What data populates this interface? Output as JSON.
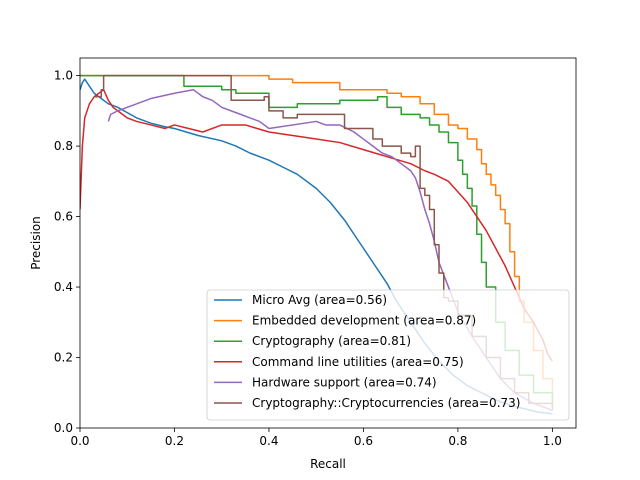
{
  "chart_data": {
    "type": "line",
    "title": "",
    "xlabel": "Recall",
    "ylabel": "Precision",
    "xlim": [
      0.0,
      1.05
    ],
    "ylim": [
      0.0,
      1.05
    ],
    "xticks": [
      0.0,
      0.2,
      0.4,
      0.6,
      0.8,
      1.0
    ],
    "yticks": [
      0.0,
      0.2,
      0.4,
      0.6,
      0.8,
      1.0
    ],
    "xtick_labels": [
      "0.0",
      "0.2",
      "0.4",
      "0.6",
      "0.8",
      "1.0"
    ],
    "ytick_labels": [
      "0.0",
      "0.2",
      "0.4",
      "0.6",
      "0.8",
      "1.0"
    ],
    "grid": false,
    "legend_position": "lower right",
    "series": [
      {
        "name": "Micro Avg (area=0.56)",
        "color": "#1f77b4",
        "step": false,
        "points": [
          [
            0.0,
            0.96
          ],
          [
            0.005,
            0.98
          ],
          [
            0.01,
            0.99
          ],
          [
            0.02,
            0.97
          ],
          [
            0.03,
            0.95
          ],
          [
            0.04,
            0.94
          ],
          [
            0.06,
            0.92
          ],
          [
            0.08,
            0.91
          ],
          [
            0.1,
            0.895
          ],
          [
            0.12,
            0.88
          ],
          [
            0.15,
            0.865
          ],
          [
            0.18,
            0.855
          ],
          [
            0.2,
            0.85
          ],
          [
            0.25,
            0.83
          ],
          [
            0.3,
            0.815
          ],
          [
            0.33,
            0.8
          ],
          [
            0.36,
            0.78
          ],
          [
            0.4,
            0.76
          ],
          [
            0.43,
            0.74
          ],
          [
            0.46,
            0.72
          ],
          [
            0.5,
            0.68
          ],
          [
            0.53,
            0.64
          ],
          [
            0.56,
            0.59
          ],
          [
            0.59,
            0.53
          ],
          [
            0.62,
            0.47
          ],
          [
            0.65,
            0.41
          ],
          [
            0.67,
            0.36
          ],
          [
            0.7,
            0.3
          ],
          [
            0.73,
            0.24
          ],
          [
            0.76,
            0.19
          ],
          [
            0.79,
            0.15
          ],
          [
            0.82,
            0.12
          ],
          [
            0.85,
            0.1
          ],
          [
            0.88,
            0.08
          ],
          [
            0.91,
            0.065
          ],
          [
            0.94,
            0.055
          ],
          [
            0.97,
            0.045
          ],
          [
            1.0,
            0.04
          ]
        ]
      },
      {
        "name": "Embedded development (area=0.87)",
        "color": "#ff7f0e",
        "step": true,
        "points": [
          [
            0.0,
            1.0
          ],
          [
            0.3,
            1.0
          ],
          [
            0.4,
            0.99
          ],
          [
            0.45,
            0.98
          ],
          [
            0.5,
            0.98
          ],
          [
            0.55,
            0.96
          ],
          [
            0.62,
            0.96
          ],
          [
            0.65,
            0.95
          ],
          [
            0.68,
            0.94
          ],
          [
            0.72,
            0.92
          ],
          [
            0.75,
            0.89
          ],
          [
            0.78,
            0.86
          ],
          [
            0.8,
            0.85
          ],
          [
            0.82,
            0.82
          ],
          [
            0.84,
            0.79
          ],
          [
            0.85,
            0.75
          ],
          [
            0.86,
            0.72
          ],
          [
            0.87,
            0.69
          ],
          [
            0.88,
            0.66
          ],
          [
            0.89,
            0.62
          ],
          [
            0.9,
            0.58
          ],
          [
            0.91,
            0.5
          ],
          [
            0.92,
            0.43
          ],
          [
            0.93,
            0.36
          ],
          [
            0.94,
            0.3
          ],
          [
            0.96,
            0.22
          ],
          [
            0.98,
            0.14
          ],
          [
            1.0,
            0.08
          ]
        ]
      },
      {
        "name": "Cryptography (area=0.81)",
        "color": "#2ca02c",
        "step": true,
        "points": [
          [
            0.0,
            1.0
          ],
          [
            0.21,
            1.0
          ],
          [
            0.22,
            0.97
          ],
          [
            0.3,
            0.96
          ],
          [
            0.33,
            0.95
          ],
          [
            0.4,
            0.91
          ],
          [
            0.46,
            0.92
          ],
          [
            0.55,
            0.93
          ],
          [
            0.63,
            0.94
          ],
          [
            0.65,
            0.91
          ],
          [
            0.68,
            0.89
          ],
          [
            0.72,
            0.88
          ],
          [
            0.74,
            0.86
          ],
          [
            0.76,
            0.84
          ],
          [
            0.78,
            0.81
          ],
          [
            0.8,
            0.76
          ],
          [
            0.81,
            0.72
          ],
          [
            0.82,
            0.68
          ],
          [
            0.83,
            0.63
          ],
          [
            0.84,
            0.55
          ],
          [
            0.85,
            0.47
          ],
          [
            0.86,
            0.4
          ],
          [
            0.88,
            0.3
          ],
          [
            0.9,
            0.22
          ],
          [
            0.93,
            0.15
          ],
          [
            0.96,
            0.1
          ],
          [
            1.0,
            0.06
          ]
        ]
      },
      {
        "name": "Command line utilities (area=0.75)",
        "color": "#d62728",
        "step": false,
        "points": [
          [
            0.0,
            0.62
          ],
          [
            0.005,
            0.8
          ],
          [
            0.01,
            0.88
          ],
          [
            0.02,
            0.92
          ],
          [
            0.03,
            0.94
          ],
          [
            0.05,
            0.96
          ],
          [
            0.06,
            0.93
          ],
          [
            0.07,
            0.91
          ],
          [
            0.08,
            0.9
          ],
          [
            0.09,
            0.89
          ],
          [
            0.1,
            0.88
          ],
          [
            0.12,
            0.87
          ],
          [
            0.15,
            0.86
          ],
          [
            0.18,
            0.85
          ],
          [
            0.2,
            0.86
          ],
          [
            0.23,
            0.85
          ],
          [
            0.26,
            0.84
          ],
          [
            0.3,
            0.86
          ],
          [
            0.35,
            0.86
          ],
          [
            0.4,
            0.84
          ],
          [
            0.45,
            0.83
          ],
          [
            0.5,
            0.82
          ],
          [
            0.55,
            0.81
          ],
          [
            0.6,
            0.79
          ],
          [
            0.65,
            0.77
          ],
          [
            0.7,
            0.75
          ],
          [
            0.73,
            0.73
          ],
          [
            0.75,
            0.72
          ],
          [
            0.78,
            0.7
          ],
          [
            0.8,
            0.67
          ],
          [
            0.82,
            0.64
          ],
          [
            0.84,
            0.6
          ],
          [
            0.86,
            0.56
          ],
          [
            0.88,
            0.51
          ],
          [
            0.9,
            0.46
          ],
          [
            0.92,
            0.4
          ],
          [
            0.94,
            0.34
          ],
          [
            0.96,
            0.3
          ],
          [
            0.98,
            0.25
          ],
          [
            0.99,
            0.21
          ],
          [
            1.0,
            0.19
          ]
        ]
      },
      {
        "name": "Hardware support (area=0.74)",
        "color": "#9467bd",
        "step": false,
        "points": [
          [
            0.06,
            0.87
          ],
          [
            0.065,
            0.89
          ],
          [
            0.08,
            0.9
          ],
          [
            0.1,
            0.91
          ],
          [
            0.12,
            0.92
          ],
          [
            0.15,
            0.935
          ],
          [
            0.2,
            0.95
          ],
          [
            0.24,
            0.96
          ],
          [
            0.26,
            0.94
          ],
          [
            0.28,
            0.93
          ],
          [
            0.3,
            0.91
          ],
          [
            0.32,
            0.9
          ],
          [
            0.34,
            0.89
          ],
          [
            0.36,
            0.88
          ],
          [
            0.38,
            0.87
          ],
          [
            0.4,
            0.85
          ],
          [
            0.5,
            0.87
          ],
          [
            0.52,
            0.86
          ],
          [
            0.55,
            0.86
          ],
          [
            0.58,
            0.84
          ],
          [
            0.6,
            0.82
          ],
          [
            0.62,
            0.8
          ],
          [
            0.64,
            0.78
          ],
          [
            0.66,
            0.77
          ],
          [
            0.68,
            0.75
          ],
          [
            0.7,
            0.73
          ],
          [
            0.71,
            0.71
          ],
          [
            0.72,
            0.67
          ],
          [
            0.73,
            0.62
          ],
          [
            0.74,
            0.58
          ],
          [
            0.75,
            0.53
          ],
          [
            0.76,
            0.47
          ],
          [
            0.78,
            0.4
          ],
          [
            0.8,
            0.33
          ],
          [
            0.83,
            0.26
          ],
          [
            0.86,
            0.2
          ],
          [
            0.89,
            0.14
          ],
          [
            0.92,
            0.1
          ],
          [
            0.96,
            0.07
          ],
          [
            1.0,
            0.05
          ]
        ]
      },
      {
        "name": "Cryptography::Cryptocurrencies (area=0.73)",
        "color": "#8c564b",
        "step": true,
        "points": [
          [
            0.03,
            0.94
          ],
          [
            0.045,
            0.96
          ],
          [
            0.05,
            1.0
          ],
          [
            0.31,
            1.0
          ],
          [
            0.32,
            0.93
          ],
          [
            0.39,
            0.94
          ],
          [
            0.4,
            0.9
          ],
          [
            0.43,
            0.88
          ],
          [
            0.46,
            0.89
          ],
          [
            0.56,
            0.85
          ],
          [
            0.62,
            0.82
          ],
          [
            0.64,
            0.8
          ],
          [
            0.68,
            0.78
          ],
          [
            0.7,
            0.77
          ],
          [
            0.71,
            0.8
          ],
          [
            0.72,
            0.68
          ],
          [
            0.73,
            0.66
          ],
          [
            0.74,
            0.62
          ],
          [
            0.75,
            0.52
          ],
          [
            0.76,
            0.44
          ],
          [
            0.77,
            0.37
          ],
          [
            0.78,
            0.36
          ],
          [
            0.8,
            0.32
          ],
          [
            0.83,
            0.26
          ],
          [
            0.86,
            0.2
          ],
          [
            0.89,
            0.14
          ],
          [
            0.92,
            0.1
          ],
          [
            0.95,
            0.07
          ],
          [
            1.0,
            0.05
          ]
        ]
      }
    ]
  }
}
